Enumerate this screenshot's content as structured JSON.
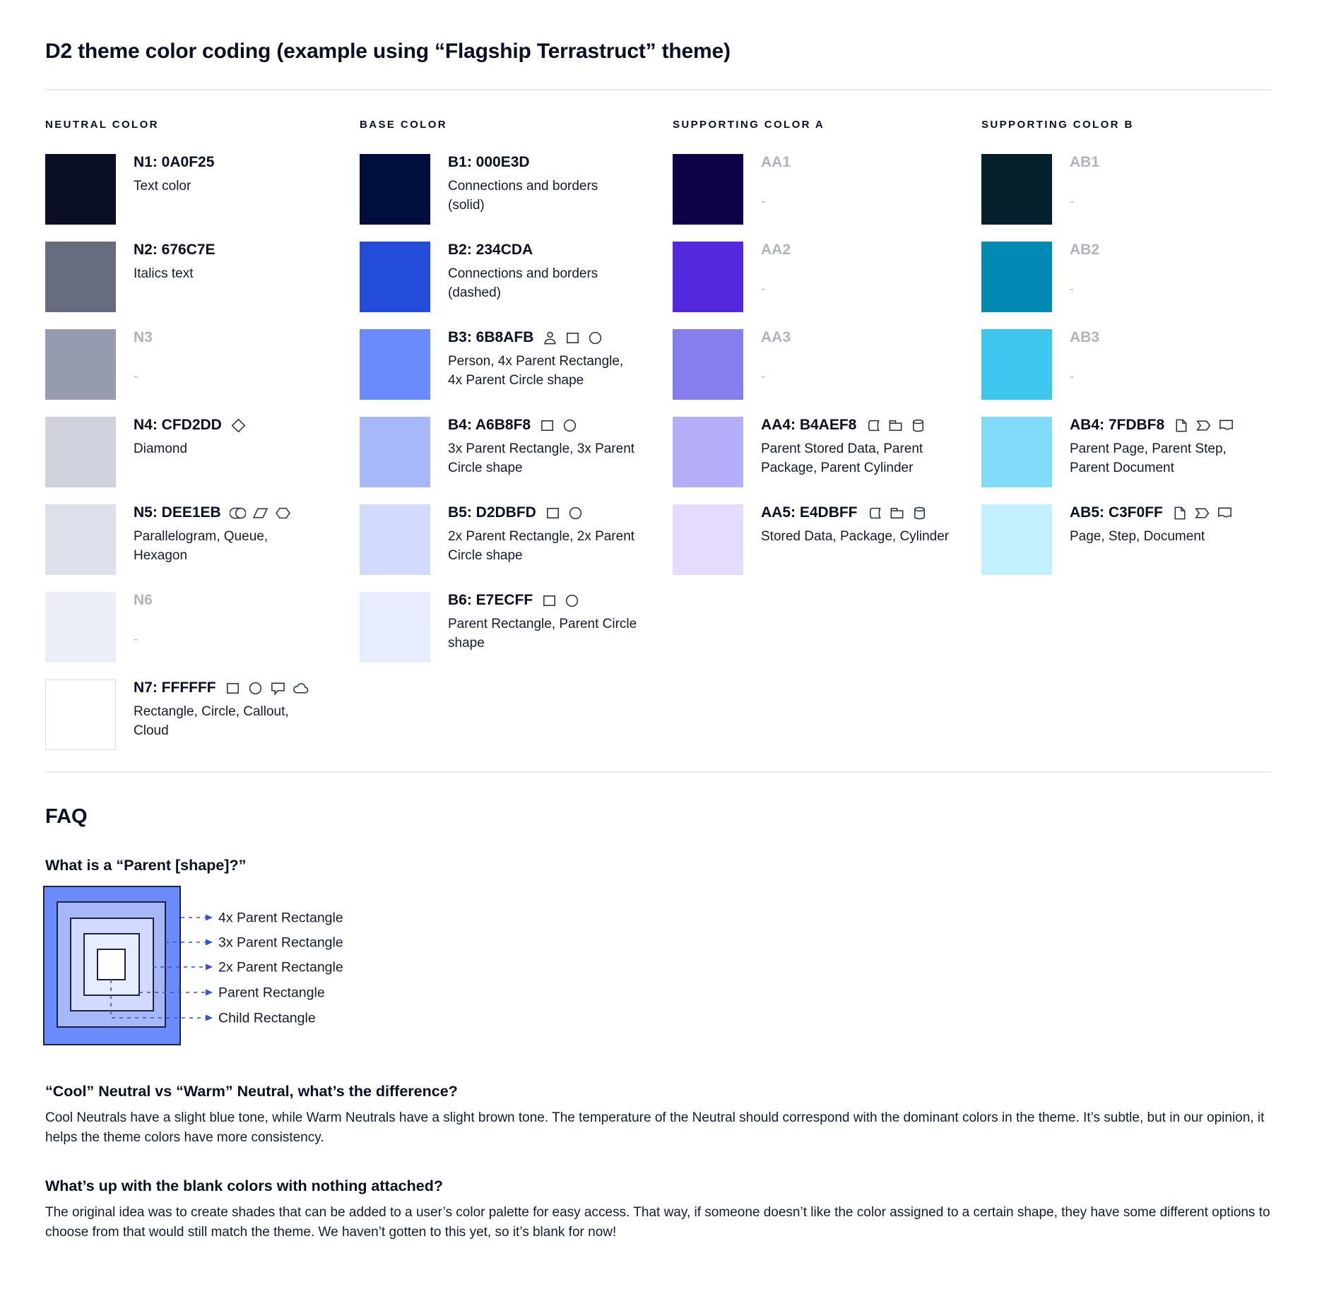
{
  "page": {
    "title": "D2 theme color coding (example using “Flagship Terrastruct” theme)"
  },
  "columns": [
    {
      "header": "NEUTRAL COLOR",
      "swatches": [
        {
          "label": "N1: 0A0F25",
          "color": "#0A0F25",
          "desc": "Text color",
          "icons": []
        },
        {
          "label": "N2: 676C7E",
          "color": "#676C7E",
          "desc": "Italics text",
          "icons": []
        },
        {
          "label": "N3",
          "color": "#959CAD",
          "desc": "-",
          "icons": []
        },
        {
          "label": "N4: CFD2DD",
          "color": "#CFD2DD",
          "desc": "Diamond",
          "icons": [
            "diamond"
          ]
        },
        {
          "label": "N5: DEE1EB",
          "color": "#DEE1EB",
          "desc": "Parallelogram, Queue, Hexagon",
          "icons": [
            "queue",
            "parallelogram",
            "hexagon"
          ]
        },
        {
          "label": "N6",
          "color": "#ECEFF8",
          "desc": "-",
          "icons": []
        },
        {
          "label": "N7: FFFFFF",
          "color": "#FFFFFF",
          "desc": "Rectangle, Circle, Callout, Cloud",
          "icons": [
            "rectangle",
            "circle",
            "callout",
            "cloud"
          ]
        }
      ]
    },
    {
      "header": "BASE COLOR",
      "swatches": [
        {
          "label": "B1: 000E3D",
          "color": "#000E3D",
          "desc": "Connections and borders (solid)",
          "icons": []
        },
        {
          "label": "B2: 234CDA",
          "color": "#234CDA",
          "desc": "Connections and borders (dashed)",
          "icons": []
        },
        {
          "label": "B3: 6B8AFB",
          "color": "#6B8AFB",
          "desc": "Person, 4x Parent Rectangle, 4x Parent Circle shape",
          "icons": [
            "person",
            "rectangle",
            "circle"
          ]
        },
        {
          "label": "B4: A6B8F8",
          "color": "#A6B8F8",
          "desc": "3x Parent Rectangle, 3x Parent Circle shape",
          "icons": [
            "rectangle",
            "circle"
          ]
        },
        {
          "label": "B5: D2DBFD",
          "color": "#D2DBFD",
          "desc": "2x Parent Rectangle, 2x Parent Circle shape",
          "icons": [
            "rectangle",
            "circle"
          ]
        },
        {
          "label": "B6: E7ECFF",
          "color": "#E7ECFF",
          "desc": "Parent Rectangle, Parent Circle shape",
          "icons": [
            "rectangle",
            "circle"
          ]
        }
      ]
    },
    {
      "header": "SUPPORTING COLOR A",
      "swatches": [
        {
          "label": "AA1",
          "color": "#0E0349",
          "desc": "-",
          "icons": []
        },
        {
          "label": "AA2",
          "color": "#5428DC",
          "desc": "-",
          "icons": []
        },
        {
          "label": "AA3",
          "color": "#877EEE",
          "desc": "-",
          "icons": []
        },
        {
          "label": "AA4: B4AEF8",
          "color": "#B4AEF8",
          "desc": "Parent Stored Data, Parent Package,  Parent Cylinder",
          "icons": [
            "stored-data",
            "package",
            "cylinder"
          ]
        },
        {
          "label": "AA5: E4DBFF",
          "color": "#E4DBFF",
          "desc": "Stored Data, Package, Cylinder",
          "icons": [
            "stored-data",
            "package",
            "cylinder"
          ]
        }
      ]
    },
    {
      "header": "SUPPORTING COLOR B",
      "swatches": [
        {
          "label": "AB1",
          "color": "#03202B",
          "desc": "-",
          "icons": []
        },
        {
          "label": "AB2",
          "color": "#0289B4",
          "desc": "-",
          "icons": []
        },
        {
          "label": "AB3",
          "color": "#3EC6EF",
          "desc": "-",
          "icons": []
        },
        {
          "label": "AB4: 7FDBF8",
          "color": "#7FDBF8",
          "desc": "Parent Page, Parent Step, Parent Document",
          "icons": [
            "page",
            "step",
            "document"
          ]
        },
        {
          "label": "AB5: C3F0FF",
          "color": "#C3F0FF",
          "desc": "Page, Step, Document",
          "icons": [
            "page",
            "step",
            "document"
          ]
        }
      ]
    }
  ],
  "faq": {
    "title": "FAQ",
    "items": [
      {
        "q": "What is a “Parent [shape]?”"
      },
      {
        "q": "“Cool” Neutral vs “Warm” Neutral, what’s the difference?",
        "a": "Cool Neutrals have a slight blue tone, while Warm Neutrals have a slight brown tone. The temperature of the Neutral should correspond with the dominant colors in the theme. It’s subtle, but in our opinion, it helps the theme colors have more consistency."
      },
      {
        "q": "What’s up with the blank colors with nothing attached?",
        "a": "The original idea was to create shades that can be added to a user’s color palette for easy access. That way, if someone doesn’t like the color assigned to a certain shape, they have some different options to choose from that would still match the theme. We haven’t gotten to this yet, so it’s blank for now!"
      }
    ],
    "diagram": {
      "labels": [
        "4x Parent Rectangle",
        "3x Parent Rectangle",
        "2x Parent Rectangle",
        "Parent Rectangle",
        "Child Rectangle"
      ],
      "colors": [
        "#6B8AFB",
        "#A6B8F8",
        "#D2DBFD",
        "#E7ECFF",
        "#FFFFFF"
      ],
      "arrow_color": "#2D54DD",
      "border_color": "#1B2340"
    }
  }
}
